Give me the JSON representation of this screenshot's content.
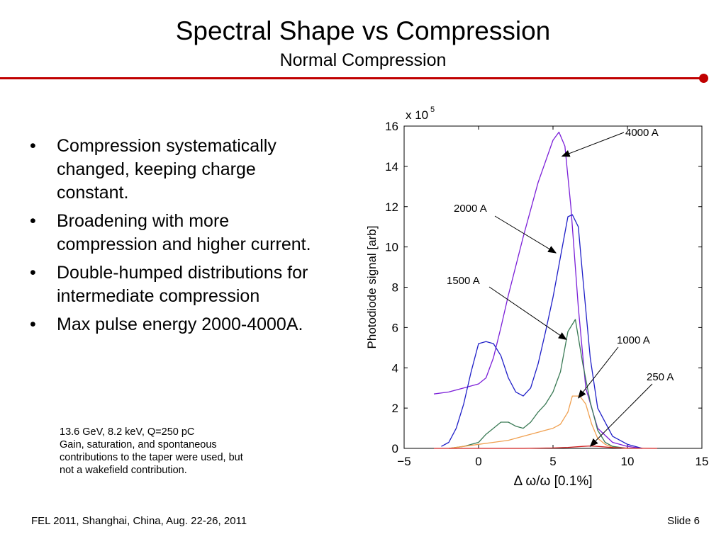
{
  "slide": {
    "title": "Spectral Shape vs Compression",
    "subtitle": "Normal Compression",
    "accent_color": "#c00000",
    "bullets": [
      "Compression systematically changed, keeping charge constant.",
      "Broadening with more compression and higher current.",
      "Double-humped distributions for intermediate compression",
      "Max pulse energy 2000-4000A."
    ],
    "note_lines": [
      "13.6 GeV, 8.2 keV, Q=250 pC",
      "Gain, saturation, and spontaneous",
      "contributions to the taper were used, but",
      "not a wakefield contribution."
    ],
    "footer_left": "FEL 2011, Shanghai, China, Aug. 22-26, 2011",
    "footer_right": "Slide 6"
  },
  "chart_data": {
    "type": "line",
    "xlabel": "Δ ω/ω [0.1%]",
    "ylabel": "Photodiode signal [arb]",
    "y_multiplier": "x 10",
    "y_multiplier_exp": "5",
    "xlim": [
      -5,
      15
    ],
    "ylim": [
      0,
      16
    ],
    "x_ticks": [
      -5,
      0,
      5,
      10,
      15
    ],
    "x_tick_labels": [
      "−5",
      "0",
      "5",
      "10",
      "15"
    ],
    "y_ticks": [
      0,
      2,
      4,
      6,
      8,
      10,
      12,
      14,
      16
    ],
    "y_tick_labels": [
      "0",
      "2",
      "4",
      "6",
      "8",
      "10",
      "12",
      "14",
      "16"
    ],
    "grid": false,
    "series": [
      {
        "name": "4000 A",
        "color": "#7b1fd8",
        "x": [
          -3,
          -2,
          -1,
          0,
          0.5,
          1,
          1.5,
          2,
          3,
          4,
          5,
          5.4,
          5.8,
          6.2,
          6.7,
          7.2,
          8,
          9,
          10,
          11
        ],
        "y": [
          2.7,
          2.8,
          3.0,
          3.2,
          3.5,
          4.5,
          6.0,
          7.6,
          10.5,
          13.2,
          15.3,
          15.7,
          15.0,
          12.0,
          7.0,
          3.0,
          1.0,
          0.3,
          0.1,
          0
        ]
      },
      {
        "name": "2000 A",
        "color": "#1f1fc8",
        "x": [
          -2.5,
          -2,
          -1.5,
          -1,
          -0.5,
          0,
          0.5,
          1,
          1.5,
          2,
          2.5,
          3,
          3.5,
          4,
          4.5,
          5,
          5.5,
          6,
          6.3,
          6.7,
          7,
          7.5,
          8,
          9,
          10,
          11
        ],
        "y": [
          0.1,
          0.3,
          1.0,
          2.2,
          3.8,
          5.2,
          5.3,
          5.2,
          4.6,
          3.5,
          2.8,
          2.6,
          3.0,
          4.2,
          5.8,
          7.5,
          9.5,
          11.5,
          11.6,
          11.0,
          8.5,
          4.5,
          2.0,
          0.6,
          0.2,
          0
        ]
      },
      {
        "name": "1500 A",
        "color": "#3a7a55",
        "x": [
          -2,
          -1,
          0,
          0.5,
          1,
          1.5,
          2,
          2.5,
          3,
          3.5,
          4,
          4.5,
          5,
          5.5,
          6,
          6.5,
          7,
          7.5,
          8,
          8.5,
          9,
          10
        ],
        "y": [
          0,
          0.1,
          0.3,
          0.7,
          1.0,
          1.3,
          1.3,
          1.1,
          1.0,
          1.3,
          1.8,
          2.2,
          2.8,
          3.8,
          5.8,
          6.4,
          4.2,
          2.3,
          0.9,
          0.3,
          0.1,
          0
        ]
      },
      {
        "name": "1000 A",
        "color": "#f0a050",
        "x": [
          -2,
          -1,
          0,
          1,
          2,
          3,
          4,
          4.5,
          5,
          5.5,
          6,
          6.3,
          6.8,
          7.2,
          7.6,
          8,
          8.5,
          9,
          10
        ],
        "y": [
          0,
          0.1,
          0.2,
          0.3,
          0.4,
          0.6,
          0.8,
          0.9,
          1.0,
          1.2,
          1.8,
          2.6,
          2.6,
          2.2,
          1.2,
          0.5,
          0.2,
          0.05,
          0
        ]
      },
      {
        "name": "250 A",
        "color": "#d02020",
        "x": [
          -3,
          0,
          3,
          5,
          6,
          7,
          7.5,
          8,
          9,
          10,
          12
        ],
        "y": [
          0,
          0,
          0,
          0.02,
          0.05,
          0.1,
          0.12,
          0.1,
          0.04,
          0.01,
          0
        ]
      }
    ],
    "annotations": [
      {
        "text": "4000 A",
        "target_x": 5.6,
        "target_y": 14.5
      },
      {
        "text": "2000 A",
        "target_x": 5.2,
        "target_y": 9.7
      },
      {
        "text": "1500 A",
        "target_x": 5.9,
        "target_y": 5.4
      },
      {
        "text": "1000 A",
        "target_x": 6.7,
        "target_y": 2.5
      },
      {
        "text": "250 A",
        "target_x": 7.5,
        "target_y": 0.1
      }
    ]
  }
}
